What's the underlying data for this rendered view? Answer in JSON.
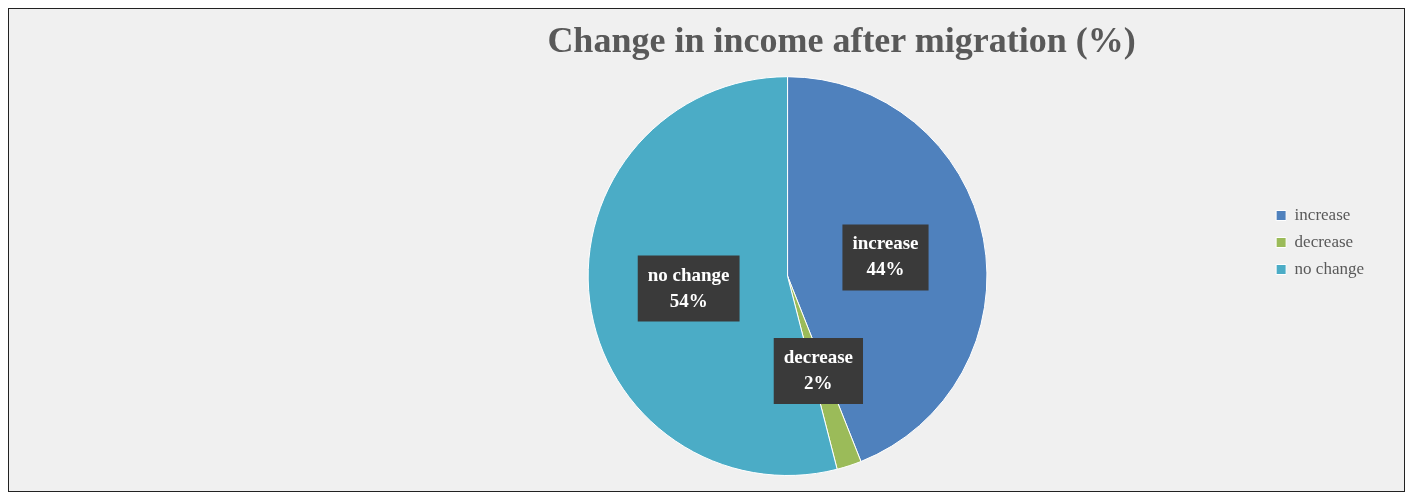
{
  "chart_data": {
    "type": "pie",
    "title": "Change in income after migration (%)",
    "categories": [
      "increase",
      "decrease",
      "no change"
    ],
    "values": [
      44,
      2,
      54
    ],
    "value_labels": [
      "44%",
      "2%",
      "54%"
    ],
    "colors": [
      "#4f81bd",
      "#9bbb59",
      "#4bacc6"
    ],
    "legend": "right"
  }
}
